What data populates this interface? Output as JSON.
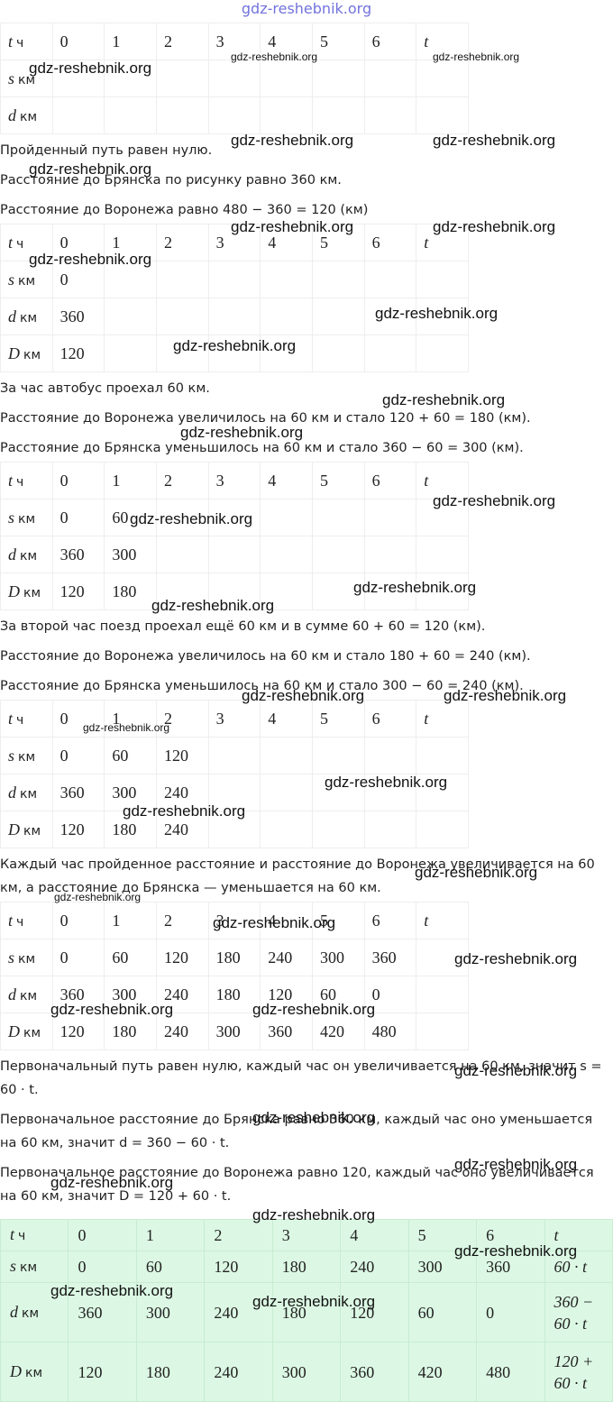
{
  "watermark": "gdz-reshebnik.org",
  "blocks": [
    {
      "kind": "table",
      "rows": [
        {
          "var": "t",
          "unit": "ч",
          "cells": [
            0,
            1,
            2,
            3,
            4,
            5,
            6,
            "t"
          ]
        },
        {
          "var": "s",
          "unit": "км",
          "cells": [
            null,
            null,
            null,
            null,
            null,
            null,
            null,
            null
          ]
        },
        {
          "var": "d",
          "unit": "км",
          "cells": [
            null,
            null,
            null,
            null,
            null,
            null,
            null,
            null
          ]
        }
      ]
    },
    {
      "kind": "p",
      "text": "Пройденный путь равен нулю."
    },
    {
      "kind": "p",
      "text": "Расстояние до Брянска по рисунку равно 360 км."
    },
    {
      "kind": "p",
      "text": "Расстояние до Воронежа равно 480 − 360 = 120 (км)"
    },
    {
      "kind": "table",
      "rows": [
        {
          "var": "t",
          "unit": "ч",
          "cells": [
            0,
            1,
            2,
            3,
            4,
            5,
            6,
            "t"
          ]
        },
        {
          "var": "s",
          "unit": "км",
          "cells": [
            0,
            null,
            null,
            null,
            null,
            null,
            null,
            null
          ]
        },
        {
          "var": "d",
          "unit": "км",
          "cells": [
            360,
            null,
            null,
            null,
            null,
            null,
            null,
            null
          ]
        },
        {
          "var": "D",
          "unit": "км",
          "cells": [
            120,
            null,
            null,
            null,
            null,
            null,
            null,
            null
          ]
        }
      ]
    },
    {
      "kind": "p",
      "text": "За час автобус проехал 60 км."
    },
    {
      "kind": "p",
      "text": "Расстояние до Воронежа увеличилось на 60 км и стало 120 + 60 = 180 (км)."
    },
    {
      "kind": "p",
      "text": "Расстояние до Брянска уменьшилось на 60 км и стало 360 − 60 = 300 (км)."
    },
    {
      "kind": "table",
      "rows": [
        {
          "var": "t",
          "unit": "ч",
          "cells": [
            0,
            1,
            2,
            3,
            4,
            5,
            6,
            "t"
          ]
        },
        {
          "var": "s",
          "unit": "км",
          "cells": [
            0,
            60,
            null,
            null,
            null,
            null,
            null,
            null
          ]
        },
        {
          "var": "d",
          "unit": "км",
          "cells": [
            360,
            300,
            null,
            null,
            null,
            null,
            null,
            null
          ]
        },
        {
          "var": "D",
          "unit": "км",
          "cells": [
            120,
            180,
            null,
            null,
            null,
            null,
            null,
            null
          ]
        }
      ]
    },
    {
      "kind": "p",
      "text": "За второй час поезд проехал ещё 60 км и в сумме 60 + 60 = 120 (км)."
    },
    {
      "kind": "p",
      "text": "Расстояние до Воронежа увеличилось на 60 км и стало 180 + 60 = 240 (км)."
    },
    {
      "kind": "p",
      "text": "Расстояние до Брянска уменьшилось на 60 км и стало 300 − 60 = 240 (км)."
    },
    {
      "kind": "table",
      "rows": [
        {
          "var": "t",
          "unit": "ч",
          "cells": [
            0,
            1,
            2,
            3,
            4,
            5,
            6,
            "t"
          ]
        },
        {
          "var": "s",
          "unit": "км",
          "cells": [
            0,
            60,
            120,
            null,
            null,
            null,
            null,
            null
          ]
        },
        {
          "var": "d",
          "unit": "км",
          "cells": [
            360,
            300,
            240,
            null,
            null,
            null,
            null,
            null
          ]
        },
        {
          "var": "D",
          "unit": "км",
          "cells": [
            120,
            180,
            240,
            null,
            null,
            null,
            null,
            null
          ]
        }
      ]
    },
    {
      "kind": "p",
      "text": "Каждый час пройденное расстояние и расстояние до Воронежа увеличивается на 60 км, а расстояние до Брянска — уменьшается на 60 км."
    },
    {
      "kind": "table",
      "rows": [
        {
          "var": "t",
          "unit": "ч",
          "cells": [
            0,
            1,
            2,
            3,
            4,
            5,
            6,
            "t"
          ]
        },
        {
          "var": "s",
          "unit": "км",
          "cells": [
            0,
            60,
            120,
            180,
            240,
            300,
            360,
            null
          ]
        },
        {
          "var": "d",
          "unit": "км",
          "cells": [
            360,
            300,
            240,
            180,
            120,
            60,
            0,
            null
          ]
        },
        {
          "var": "D",
          "unit": "км",
          "cells": [
            120,
            180,
            240,
            300,
            360,
            420,
            480,
            null
          ]
        }
      ]
    },
    {
      "kind": "p",
      "text": "Первоначальный путь равен нулю, каждый час он увеличивается на 60 км, значит s = 60 · t."
    },
    {
      "kind": "p",
      "text": "Первоначальное расстояние до Брянска равно 360 км, каждый час оно уменьшается на 60 км, значит d = 360 − 60 · t."
    },
    {
      "kind": "p",
      "text": "Первоначальное расстояние до Воронежа равно 120, каждый час оно увеличивается на 60 км, значит D = 120 + 60 · t."
    },
    {
      "kind": "final-table",
      "rows": [
        {
          "var": "t",
          "unit": "ч",
          "cells": [
            0,
            1,
            2,
            3,
            4,
            5,
            6,
            "t"
          ]
        },
        {
          "var": "s",
          "unit": "км",
          "cells": [
            0,
            60,
            120,
            180,
            240,
            300,
            360,
            "60 · t"
          ]
        },
        {
          "var": "d",
          "unit": "км",
          "cells": [
            360,
            300,
            240,
            180,
            120,
            60,
            0,
            "360 − 60 · t"
          ]
        },
        {
          "var": "D",
          "unit": "км",
          "cells": [
            120,
            180,
            240,
            300,
            360,
            420,
            480,
            "120 + 60 · t"
          ]
        }
      ]
    }
  ]
}
